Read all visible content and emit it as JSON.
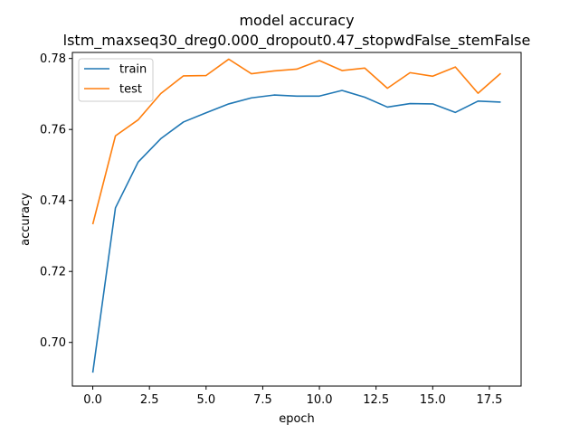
{
  "chart_data": {
    "type": "line",
    "title": "model accuracy",
    "subtitle": "lstm_maxseq30_dreg0.000_dropout0.47_stopwdFalse_stemFalse",
    "xlabel": "epoch",
    "ylabel": "accuracy",
    "xlim": [
      -0.9,
      18.9
    ],
    "ylim": [
      0.6877,
      0.7817
    ],
    "xticks": [
      0.0,
      2.5,
      5.0,
      7.5,
      10.0,
      12.5,
      15.0,
      17.5
    ],
    "xtick_labels": [
      "0.0",
      "2.5",
      "5.0",
      "7.5",
      "10.0",
      "12.5",
      "15.0",
      "17.5"
    ],
    "yticks": [
      0.7,
      0.72,
      0.74,
      0.76,
      0.78
    ],
    "ytick_labels": [
      "0.70",
      "0.72",
      "0.74",
      "0.76",
      "0.78"
    ],
    "grid": false,
    "legend_position": "top-left",
    "x": [
      0,
      1,
      2,
      3,
      4,
      5,
      6,
      7,
      8,
      9,
      10,
      11,
      12,
      13,
      14,
      15,
      16,
      17,
      18
    ],
    "series": [
      {
        "name": "train",
        "color": "#1f77b4",
        "values": [
          0.6915,
          0.7379,
          0.7508,
          0.7574,
          0.7621,
          0.7647,
          0.7672,
          0.7689,
          0.7697,
          0.7694,
          0.7694,
          0.771,
          0.7691,
          0.7663,
          0.7673,
          0.7672,
          0.7648,
          0.768,
          0.7677
        ]
      },
      {
        "name": "test",
        "color": "#ff7f0e",
        "values": [
          0.7333,
          0.7582,
          0.7627,
          0.7701,
          0.7751,
          0.7752,
          0.7798,
          0.7757,
          0.7765,
          0.777,
          0.7794,
          0.7766,
          0.7773,
          0.7716,
          0.776,
          0.775,
          0.7776,
          0.7702,
          0.7758
        ]
      }
    ]
  }
}
